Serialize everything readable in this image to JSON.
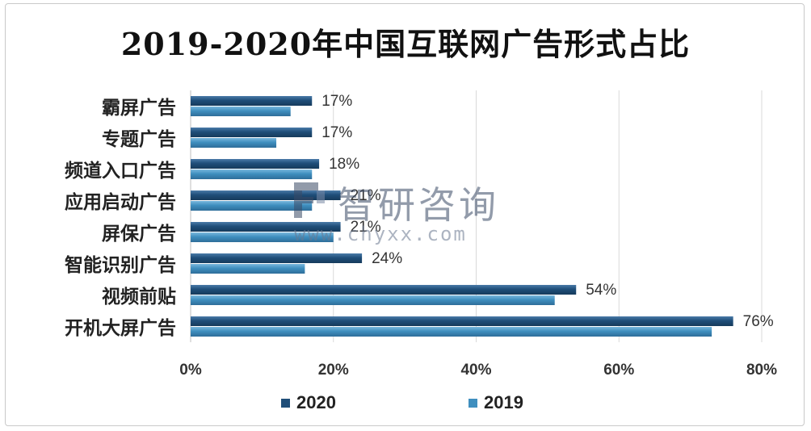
{
  "chart_data": {
    "type": "bar",
    "orientation": "horizontal",
    "title": "2019-2020年中国互联网广告形式占比",
    "categories": [
      "霸屏广告",
      "专题广告",
      "频道入口广告",
      "应用启动广告",
      "屏保广告",
      "智能识别广告",
      "视频前贴",
      "开机大屏广告"
    ],
    "series": [
      {
        "name": "2020",
        "values": [
          17,
          17,
          18,
          21,
          21,
          24,
          54,
          76
        ],
        "color": "#1f4e79"
      },
      {
        "name": "2019",
        "values": [
          14,
          12,
          17,
          17,
          20,
          16,
          51,
          73
        ],
        "color": "#3f8fbf"
      }
    ],
    "data_labels": [
      "17%",
      "17%",
      "18%",
      "21%",
      "21%",
      "24%",
      "54%",
      "76%"
    ],
    "xlim": [
      0,
      80
    ],
    "x_ticks": [
      "0%",
      "20%",
      "40%",
      "60%",
      "80%"
    ],
    "x_tick_values": [
      0,
      20,
      40,
      60,
      80
    ],
    "grid": true,
    "legend_position": "bottom"
  },
  "watermark": {
    "name": "智研咨询",
    "url": "www.chyxx.com"
  }
}
